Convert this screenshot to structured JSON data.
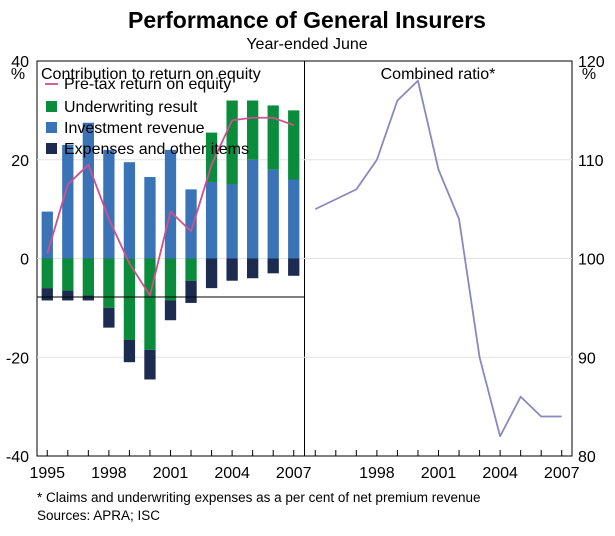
{
  "chart_data": {
    "type": "bar",
    "title": "Performance of General Insurers",
    "subtitle": "Year-ended June",
    "left_unit": "%",
    "right_unit": "%",
    "footnote": "*   Claims and underwriting expenses as a per cent of net premium revenue",
    "sources": "Sources: APRA; ISC",
    "colors": {
      "underwriting": "#0a8c3c",
      "investment": "#3a73b6",
      "expenses": "#1d2b50",
      "pretax": "#d0508e",
      "combined": "#8a88bd"
    },
    "panels": [
      {
        "title": "Contribution to return on equity",
        "type": "stacked-bar+line",
        "ylim": [
          -40,
          40
        ],
        "yticks": [
          "40",
          "20",
          "0",
          "-20",
          "-40"
        ],
        "x": [
          1995,
          1996,
          1997,
          1998,
          1999,
          2000,
          2001,
          2002,
          2003,
          2004,
          2005,
          2006,
          2007
        ],
        "xtick_labels": [
          "1995",
          "1998",
          "2001",
          "2004",
          "2007"
        ],
        "legend": [
          {
            "key": "pretax",
            "label": "Pre-tax return on equity",
            "kind": "line"
          },
          {
            "key": "underwriting",
            "label": "Underwriting result",
            "kind": "box"
          },
          {
            "key": "investment",
            "label": "Investment revenue",
            "kind": "box"
          },
          {
            "key": "expenses",
            "label": "Expenses and other items",
            "kind": "box"
          }
        ],
        "series": [
          {
            "name": "Investment revenue",
            "key": "investment",
            "values": [
              9.5,
              23,
              27.5,
              22,
              19.5,
              16.5,
              22,
              14,
              15.5,
              15,
              20,
              18,
              16
            ]
          },
          {
            "name": "Underwriting result",
            "key": "underwriting",
            "values": [
              -6,
              -6.5,
              -7.5,
              -10,
              -16.5,
              -18.5,
              -8.5,
              -4.5,
              10,
              17,
              12,
              13,
              14
            ]
          },
          {
            "name": "Expenses and other items",
            "key": "expenses",
            "values": [
              -2.5,
              -2,
              -1,
              -4,
              -4.5,
              -6,
              -4,
              -4.5,
              -6,
              -4.5,
              -4,
              -3,
              -3.5
            ]
          },
          {
            "name": "Pre-tax return on equity",
            "key": "pretax",
            "kind": "line",
            "values": [
              1,
              15,
              19,
              8,
              -1,
              -7.5,
              9.5,
              5.5,
              19,
              28,
              28.5,
              28.5,
              27
            ]
          }
        ]
      },
      {
        "title": "Combined ratio*",
        "type": "line",
        "ylim": [
          80,
          120
        ],
        "yticks": [
          "120",
          "110",
          "100",
          "90",
          "80"
        ],
        "xtick_labels": [
          "1998",
          "2001",
          "2004",
          "2007"
        ],
        "series": [
          {
            "name": "Combined ratio",
            "key": "combined",
            "x": [
              1995,
              1996,
              1997,
              1998,
              1999,
              2000,
              2001,
              2002,
              2003,
              2004,
              2005,
              2006,
              2007
            ],
            "values": [
              105,
              106,
              107,
              110,
              116,
              118,
              109,
              104,
              90,
              82,
              86,
              84,
              84
            ]
          }
        ]
      }
    ]
  }
}
